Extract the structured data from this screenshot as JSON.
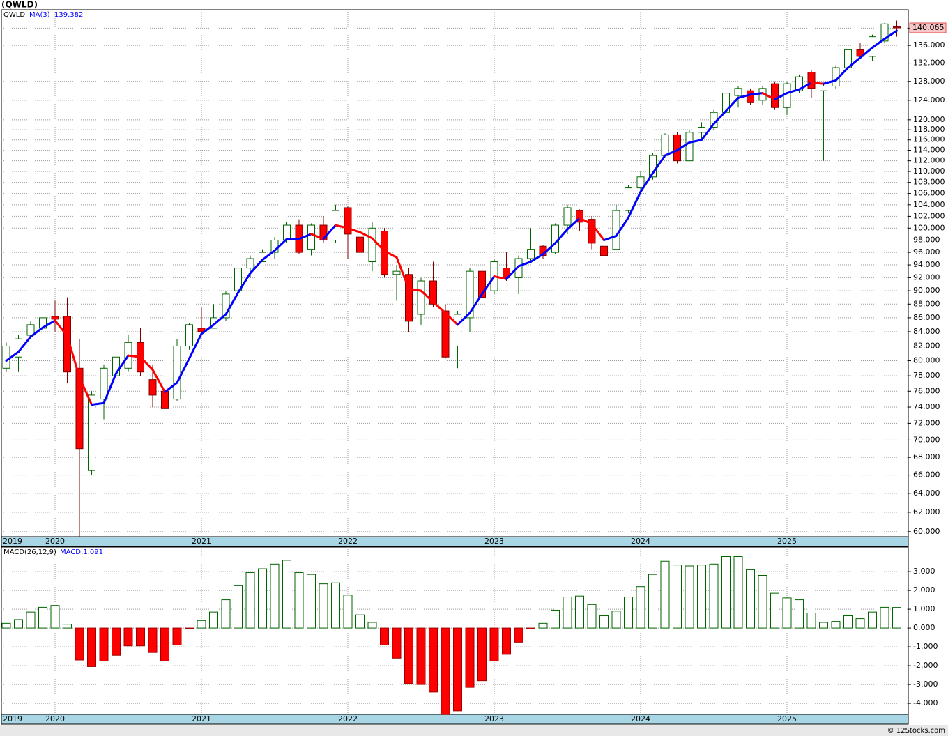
{
  "chart_data": [
    {
      "type": "candlestick",
      "title": "(QWLD)",
      "name": "QWLD",
      "log_scale": true,
      "grid": true,
      "credit": "© 12Stocks.com",
      "categories": [
        "2019",
        null,
        null,
        null,
        "2020",
        null,
        null,
        null,
        null,
        null,
        null,
        null,
        null,
        null,
        null,
        null,
        "2021",
        null,
        null,
        null,
        null,
        null,
        null,
        null,
        null,
        null,
        null,
        null,
        "2022",
        null,
        null,
        null,
        null,
        null,
        null,
        null,
        null,
        null,
        null,
        null,
        "2023",
        null,
        null,
        null,
        null,
        null,
        null,
        null,
        null,
        null,
        null,
        null,
        "2024",
        null,
        null,
        null,
        null,
        null,
        null,
        null,
        null,
        null,
        null,
        null,
        "2025",
        null,
        null,
        null,
        null,
        null,
        null,
        null,
        null,
        null
      ],
      "open": [
        79,
        80.5,
        83.5,
        84.5,
        86.2,
        86.2,
        79,
        66.5,
        75,
        78,
        79,
        82.5,
        77.5,
        76,
        75,
        82,
        84.5,
        84.5,
        86,
        90,
        93.5,
        94.5,
        96,
        98,
        100.5,
        96.5,
        100.5,
        98,
        103.5,
        98.5,
        94.5,
        99.5,
        92.5,
        92.5,
        86.5,
        91.5,
        87,
        82,
        86,
        93,
        90,
        93.5,
        92,
        95,
        97,
        96,
        100.5,
        103,
        101.5,
        97,
        96.5,
        103,
        107,
        109,
        113,
        117,
        112,
        117.5,
        118.5,
        121.5,
        125,
        126,
        124,
        127.5,
        122.5,
        126,
        130,
        126,
        127,
        131,
        135,
        133.5,
        137,
        140.3
      ],
      "high": [
        82.5,
        83.5,
        85.5,
        87,
        88.5,
        89,
        83,
        76,
        79.5,
        83,
        83.5,
        84.5,
        79.5,
        79.5,
        83,
        85.2,
        87.5,
        88,
        90,
        94,
        95.5,
        96.5,
        98.5,
        101,
        101.5,
        100.8,
        102,
        104,
        103.8,
        100,
        101,
        100,
        94,
        93.5,
        92,
        94.5,
        88,
        87,
        93.5,
        94,
        95,
        96,
        95.5,
        100,
        97.2,
        100.8,
        104,
        103.2,
        102,
        97.5,
        104,
        107.5,
        110,
        113.5,
        117.3,
        117.5,
        118,
        119.5,
        122,
        126,
        127,
        126.5,
        127,
        128,
        128,
        129.5,
        130.5,
        127.5,
        131.5,
        135.5,
        136.5,
        138.5,
        141.2,
        141.8
      ],
      "low": [
        78.5,
        78.5,
        83,
        84,
        84,
        77,
        59.5,
        66,
        72.5,
        76,
        78.5,
        78,
        74,
        73.8,
        74.8,
        81.5,
        83.5,
        84.5,
        85.5,
        89.5,
        92,
        94.5,
        95,
        97.5,
        95.7,
        95.5,
        97.5,
        97.5,
        95,
        92.5,
        93,
        92,
        88.5,
        84,
        85,
        87.5,
        80.3,
        79,
        84,
        88,
        89.5,
        91.5,
        89.5,
        94.5,
        95,
        95.8,
        99,
        99.5,
        96.5,
        94,
        96.5,
        102.5,
        106,
        108.5,
        112.5,
        111.5,
        112,
        116,
        118,
        115,
        122.5,
        123,
        123,
        122,
        121,
        125.5,
        124.5,
        112,
        126.5,
        130.5,
        133,
        132.5,
        136.5,
        138
      ],
      "close": [
        82,
        83,
        85,
        86,
        85.8,
        78.5,
        69,
        75.5,
        79,
        80.5,
        82.5,
        78.5,
        75.5,
        73.8,
        82,
        85,
        84,
        86,
        89.5,
        93.5,
        95,
        96,
        98,
        100.5,
        96,
        100.5,
        98,
        103,
        99,
        96,
        100,
        92.5,
        93,
        85.5,
        91.5,
        88,
        80.5,
        86.5,
        93,
        89,
        94.5,
        92,
        95,
        96.5,
        95.5,
        100.5,
        103.5,
        101,
        97.5,
        95.5,
        103,
        107,
        109,
        113,
        117,
        112,
        117.5,
        118.5,
        121.5,
        125.5,
        126.5,
        123.5,
        126.5,
        122.5,
        127.5,
        129,
        126.5,
        127,
        131,
        135,
        133.5,
        138,
        141,
        140.065
      ],
      "last_price": 140.065,
      "up_color": "#006400",
      "down_color": "#ff0000",
      "ma": {
        "name": "MA(3)",
        "last": 139.382,
        "color_up": "#0000ff",
        "color_down": "#ff0000",
        "values": [
          80,
          81.2,
          83.3,
          84.6,
          85.6,
          83.4,
          77.8,
          74.3,
          74.5,
          78.3,
          80.7,
          80.5,
          78.8,
          75.9,
          77.1,
          80.3,
          83.7,
          85,
          86.5,
          89.7,
          92.7,
          94.8,
          96.3,
          98.2,
          98.2,
          99,
          98.2,
          100.5,
          100,
          99.3,
          98.3,
          96.2,
          95.2,
          90.3,
          90,
          88.3,
          86.7,
          85,
          86.7,
          89.5,
          92.2,
          91.8,
          93.8,
          94.5,
          95.7,
          97.5,
          99.8,
          101.7,
          100.7,
          98,
          98.7,
          101.8,
          106.3,
          109.7,
          113,
          114,
          115.5,
          116,
          119.2,
          121.8,
          124.5,
          125.2,
          125.5,
          124.2,
          125.5,
          126.3,
          127.7,
          127.5,
          128.2,
          131,
          133.2,
          135.5,
          137.5,
          139.382
        ]
      },
      "ylim": [
        59.5,
        144.4
      ],
      "yticks": [
        {
          "value": 60,
          "label": "60.000"
        },
        {
          "value": 62,
          "label": "62.000"
        },
        {
          "value": 64,
          "label": "64.000"
        },
        {
          "value": 66,
          "label": "66.000"
        },
        {
          "value": 68,
          "label": "68.000"
        },
        {
          "value": 70,
          "label": "70.000"
        },
        {
          "value": 72,
          "label": "72.000"
        },
        {
          "value": 74,
          "label": "74.000"
        },
        {
          "value": 76,
          "label": "76.000"
        },
        {
          "value": 78,
          "label": "78.000"
        },
        {
          "value": 80,
          "label": "80.000"
        },
        {
          "value": 82,
          "label": "82.000"
        },
        {
          "value": 84,
          "label": "84.000"
        },
        {
          "value": 86,
          "label": "86.000"
        },
        {
          "value": 88,
          "label": "88.000"
        },
        {
          "value": 90,
          "label": "90.000"
        },
        {
          "value": 92,
          "label": "92.000"
        },
        {
          "value": 94,
          "label": "94.000"
        },
        {
          "value": 96,
          "label": "96.000"
        },
        {
          "value": 98,
          "label": "98.000"
        },
        {
          "value": 100,
          "label": "100.000"
        },
        {
          "value": 102,
          "label": "102.000"
        },
        {
          "value": 104,
          "label": "104.000"
        },
        {
          "value": 106,
          "label": "106.000"
        },
        {
          "value": 108,
          "label": "108.000"
        },
        {
          "value": 110,
          "label": "110.000"
        },
        {
          "value": 112,
          "label": "112.000"
        },
        {
          "value": 114,
          "label": "114.000"
        },
        {
          "value": 116,
          "label": "116.000"
        },
        {
          "value": 118,
          "label": "118.000"
        },
        {
          "value": 120,
          "label": "120.000"
        },
        {
          "value": 124,
          "label": "124.000"
        },
        {
          "value": 128,
          "label": "128.000"
        },
        {
          "value": 132,
          "label": "132.000"
        },
        {
          "value": 136,
          "label": "136.000"
        },
        {
          "value": 140,
          "label": "140.000"
        }
      ]
    },
    {
      "type": "bar",
      "name": "MACD(26,12,9)",
      "label": "MACD:1.091",
      "grid": true,
      "up_color": "#006400",
      "down_color": "#ff0000",
      "values": [
        0.25,
        0.45,
        0.85,
        1.1,
        1.2,
        0.2,
        -1.7,
        -2.05,
        -1.75,
        -1.45,
        -0.95,
        -0.95,
        -1.3,
        -1.75,
        -0.9,
        -0.03,
        0.4,
        0.85,
        1.5,
        2.25,
        2.95,
        3.15,
        3.4,
        3.6,
        2.95,
        2.85,
        2.35,
        2.4,
        1.75,
        0.7,
        0.3,
        -0.9,
        -1.6,
        -2.95,
        -3.0,
        -3.4,
        -4.6,
        -4.4,
        -3.15,
        -2.8,
        -1.75,
        -1.4,
        -0.75,
        -0.05,
        0.25,
        0.95,
        1.65,
        1.7,
        1.25,
        0.65,
        0.9,
        1.65,
        2.2,
        2.85,
        3.55,
        3.35,
        3.3,
        3.35,
        3.4,
        3.8,
        3.8,
        3.1,
        2.8,
        1.85,
        1.6,
        1.5,
        0.8,
        0.3,
        0.35,
        0.65,
        0.5,
        0.85,
        1.1,
        1.091
      ],
      "ylim": [
        -4.59,
        4.3
      ],
      "yticks": [
        {
          "value": -4,
          "label": "-4.000"
        },
        {
          "value": -3,
          "label": "-3.000"
        },
        {
          "value": -2,
          "label": "-2.000"
        },
        {
          "value": -1,
          "label": "-1.000"
        },
        {
          "value": 0,
          "label": "0.000"
        },
        {
          "value": 1,
          "label": "1.000"
        },
        {
          "value": 2,
          "label": "2.000"
        },
        {
          "value": 3,
          "label": "3.000"
        }
      ]
    }
  ]
}
